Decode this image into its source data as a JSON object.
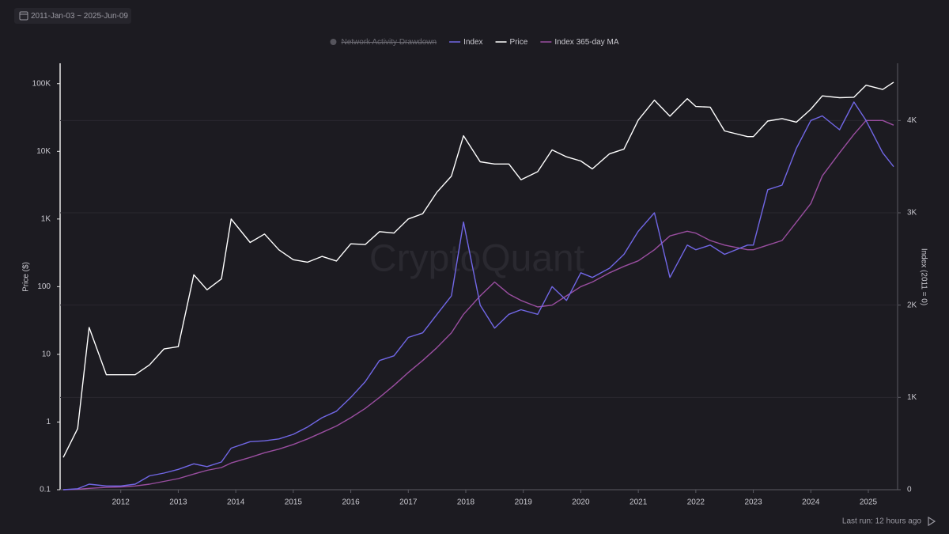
{
  "chart_data": {
    "type": "line",
    "date_range": "2011-Jan-03 ~ 2025-Jun-09",
    "watermark": "CryptoQuant",
    "ylabel": "Price ($)",
    "y2label": "Index (2011 = 0)",
    "footer": "Last run: 12 hours ago",
    "ylog": true,
    "grid": true,
    "x": [
      2011.0,
      2011.25,
      2011.45,
      2011.75,
      2012.0,
      2012.25,
      2012.5,
      2012.75,
      2013.0,
      2013.27,
      2013.5,
      2013.75,
      2013.92,
      2014.25,
      2014.5,
      2014.75,
      2015.0,
      2015.25,
      2015.5,
      2015.75,
      2016.0,
      2016.25,
      2016.5,
      2016.75,
      2017.0,
      2017.25,
      2017.5,
      2017.75,
      2017.96,
      2018.25,
      2018.5,
      2018.75,
      2018.96,
      2019.25,
      2019.5,
      2019.75,
      2020.0,
      2020.2,
      2020.5,
      2020.75,
      2021.0,
      2021.28,
      2021.55,
      2021.85,
      2022.0,
      2022.25,
      2022.5,
      2022.9,
      2023.0,
      2023.25,
      2023.5,
      2023.75,
      2024.0,
      2024.2,
      2024.5,
      2024.75,
      2024.96,
      2025.25,
      2025.44
    ],
    "xlim": [
      2011.0,
      2025.44
    ],
    "xticks": [
      2012,
      2013,
      2014,
      2015,
      2016,
      2017,
      2018,
      2019,
      2020,
      2021,
      2022,
      2023,
      2024,
      2025
    ],
    "ylim": [
      0.1,
      200000
    ],
    "yticks": [
      0.1,
      1,
      10,
      100,
      {
        "value": 1000,
        "label": "1K"
      },
      {
        "value": 10000,
        "label": "10K"
      },
      {
        "value": 100000,
        "label": "100K"
      }
    ],
    "y2lim": [
      0,
      4620
    ],
    "y2ticks": [
      0,
      {
        "value": 1000,
        "label": "1K"
      },
      {
        "value": 2000,
        "label": "2K"
      },
      {
        "value": 3000,
        "label": "3K"
      },
      {
        "value": 4000,
        "label": "4K"
      }
    ],
    "series": [
      {
        "name": "Network Activity Drawdown",
        "color": "#55545c",
        "visible": false
      },
      {
        "name": "Index",
        "color": "#7167e6",
        "axis": "y2",
        "values": [
          0,
          10,
          60,
          40,
          40,
          60,
          150,
          180,
          220,
          280,
          250,
          300,
          450,
          520,
          530,
          550,
          600,
          680,
          780,
          850,
          1000,
          1170,
          1400,
          1450,
          1650,
          1700,
          1900,
          2100,
          2900,
          2000,
          1750,
          1900,
          1950,
          1900,
          2200,
          2050,
          2350,
          2300,
          2400,
          2550,
          2800,
          3000,
          2300,
          2650,
          2600,
          2650,
          2550,
          2650,
          2650,
          3250,
          3300,
          3700,
          4000,
          4050,
          3900,
          4200,
          4000,
          3650,
          3500
        ]
      },
      {
        "name": "Price",
        "color": "#ffffff",
        "values": [
          0.3,
          0.8,
          25,
          5,
          5,
          5,
          7,
          12,
          13,
          150,
          90,
          130,
          1000,
          450,
          600,
          350,
          250,
          230,
          280,
          240,
          430,
          420,
          650,
          620,
          1000,
          1200,
          2500,
          4300,
          17000,
          7000,
          6500,
          6500,
          3800,
          5000,
          10500,
          8300,
          7200,
          5500,
          9200,
          10800,
          29000,
          57000,
          33000,
          60000,
          46000,
          45000,
          20000,
          16500,
          16500,
          28000,
          30500,
          27000,
          42000,
          66000,
          62000,
          63000,
          95000,
          82000,
          105000
        ]
      },
      {
        "name": "Index 365-day MA",
        "color": "#9a4ea0",
        "axis": "y2",
        "values": [
          0,
          5,
          15,
          25,
          30,
          40,
          60,
          90,
          120,
          170,
          210,
          240,
          290,
          350,
          400,
          440,
          490,
          550,
          620,
          690,
          780,
          880,
          1000,
          1130,
          1270,
          1400,
          1540,
          1700,
          1900,
          2100,
          2250,
          2120,
          2050,
          1980,
          2000,
          2100,
          2200,
          2250,
          2350,
          2420,
          2480,
          2600,
          2750,
          2800,
          2780,
          2700,
          2650,
          2600,
          2600,
          2650,
          2700,
          2900,
          3100,
          3400,
          3650,
          3850,
          4000,
          4000,
          3950
        ]
      }
    ]
  }
}
